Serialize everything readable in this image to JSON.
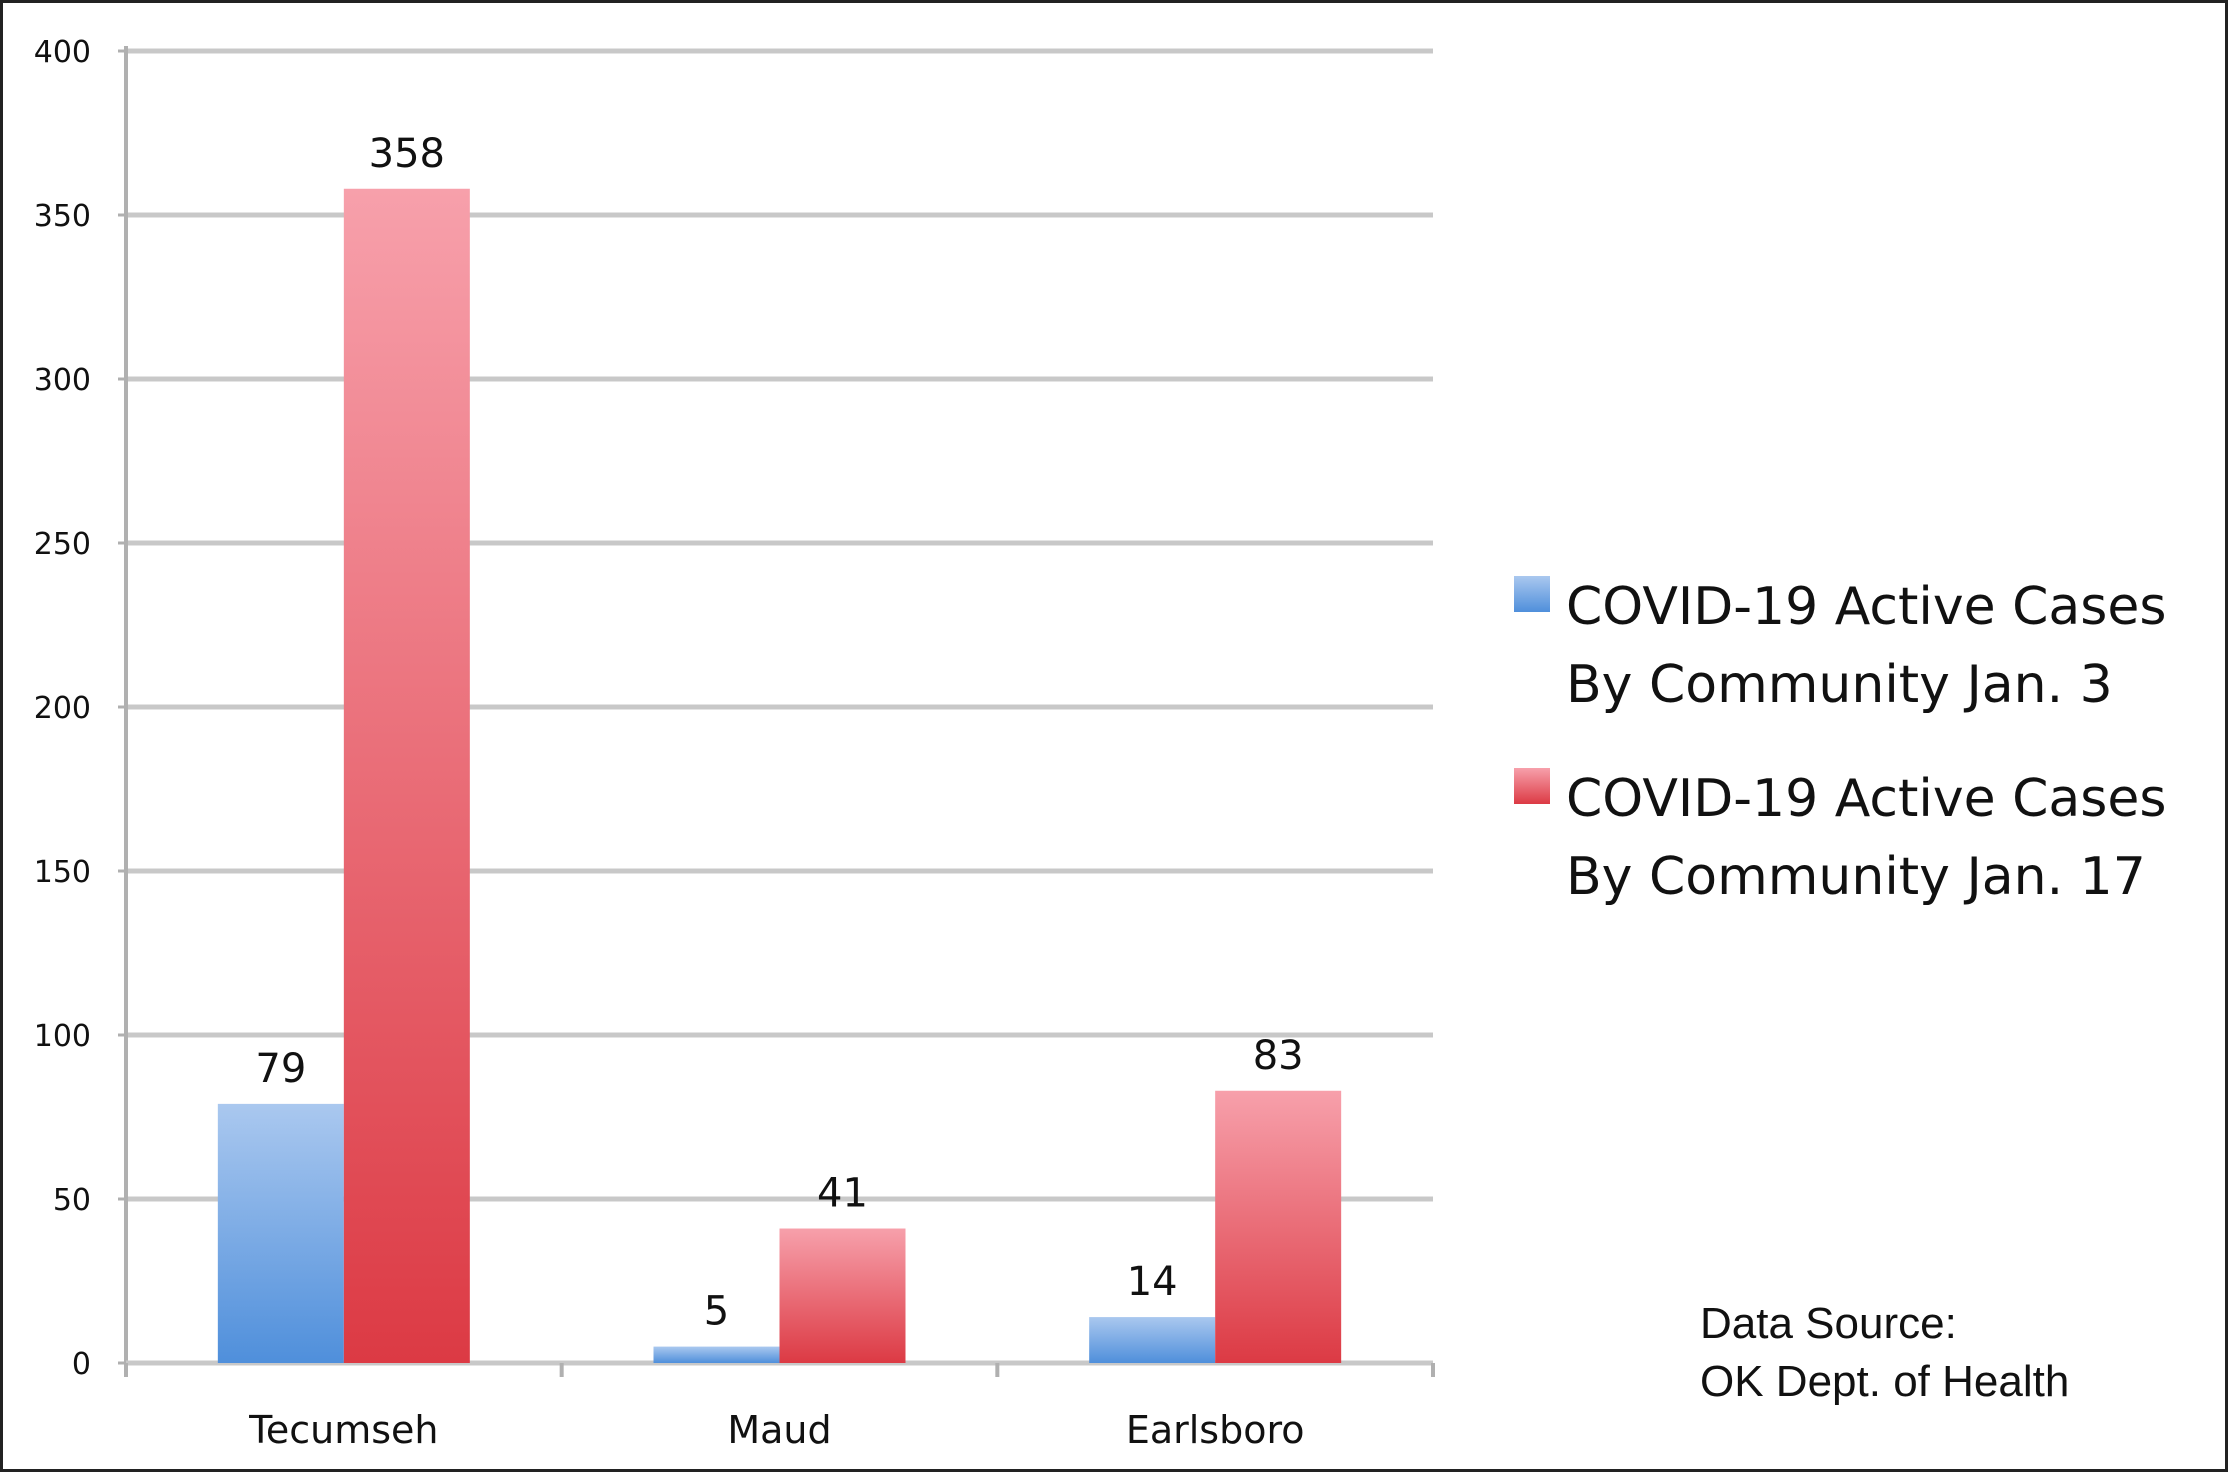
{
  "chart_data": {
    "type": "bar",
    "categories": [
      "Tecumseh",
      "Maud",
      "Earlsboro"
    ],
    "series": [
      {
        "name": "COVID-19 Active Cases By Community Jan. 3",
        "legend_lines": [
          "COVID-19 Active Cases",
          "By Community Jan. 3"
        ],
        "values": [
          79,
          5,
          14
        ],
        "color": "#4f8fdb",
        "color_light": "#aac8ef"
      },
      {
        "name": "COVID-19 Active Cases By Community Jan. 17",
        "legend_lines": [
          "COVID-19 Active Cases",
          "By Community Jan. 17"
        ],
        "values": [
          358,
          41,
          83
        ],
        "color": "#dc3a44",
        "color_light": "#f7a0ab"
      }
    ],
    "yticks": [
      0,
      50,
      100,
      150,
      200,
      250,
      300,
      350,
      400
    ],
    "ylim": [
      0,
      400
    ],
    "grid": true,
    "legend_position": "right",
    "data_labels": true
  },
  "source_note": {
    "lines": [
      "Data Source:",
      "OK Dept. of Health"
    ]
  }
}
